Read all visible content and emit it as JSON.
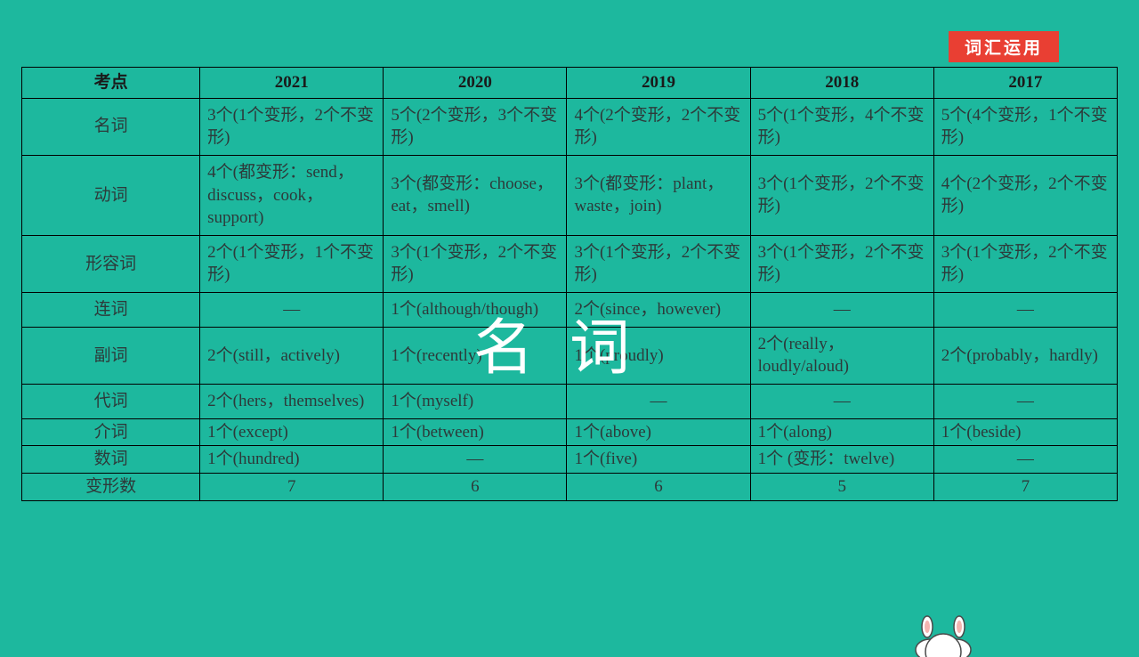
{
  "badge": "词汇运用",
  "overlay": "名词",
  "header": {
    "col0": "考点",
    "years": [
      "2021",
      "2020",
      "2019",
      "2018",
      "2017"
    ]
  },
  "rows": [
    {
      "label": "名词",
      "cells": [
        "3个(1个变形，2个不变形)",
        "5个(2个变形，3个不变形)",
        "4个(2个变形，2个不变形)",
        "5个(1个变形，4个不变形)",
        "5个(4个变形，1个不变形)"
      ],
      "align": "left"
    },
    {
      "label": "动词",
      "cells": [
        "4个(都变形：send，discuss，cook，support)",
        "3个(都变形：choose，eat，smell)",
        "3个(都变形：plant，waste，join)",
        "3个(1个变形，2个不变形)",
        "4个(2个变形，2个不变形)"
      ],
      "align": "left"
    },
    {
      "label": "形容词",
      "cells": [
        "2个(1个变形，1个不变形)",
        "3个(1个变形，2个不变形)",
        "3个(1个变形，2个不变形)",
        "3个(1个变形，2个不变形)",
        "3个(1个变形，2个不变形)"
      ],
      "align": "left"
    },
    {
      "label": "连词",
      "cells": [
        "—",
        "1个(although/though)",
        "2个(since，however)",
        "—",
        "—"
      ],
      "align": "mixed",
      "centers": [
        0,
        3,
        4
      ]
    },
    {
      "label": "副词",
      "cells": [
        "2个(still，actively)",
        "1个(recently)",
        "1个(proudly)",
        "2个(really，loudly/aloud)",
        "2个(probably，hardly)"
      ],
      "align": "left"
    },
    {
      "label": "代词",
      "cells": [
        "2个(hers，themselves)",
        "1个(myself)",
        "—",
        "—",
        "—"
      ],
      "align": "mixed",
      "centers": [
        2,
        3,
        4
      ]
    },
    {
      "label": "介词",
      "cells": [
        "1个(except)",
        "1个(between)",
        "1个(above)",
        "1个(along)",
        "1个(beside)"
      ],
      "align": "left",
      "short": true
    },
    {
      "label": "数词",
      "cells": [
        "1个(hundred)",
        "—",
        "1个(five)",
        "1个 (变形：twelve)",
        "—"
      ],
      "align": "mixed",
      "centers": [
        1,
        4
      ],
      "short": true
    },
    {
      "label": "变形数",
      "cells": [
        "7",
        "6",
        "6",
        "5",
        "7"
      ],
      "align": "center",
      "short": true
    }
  ],
  "mascot": {
    "body_fill": "#ffffff",
    "ear_fill": "#f5b5b0",
    "outline": "#4a4a4a"
  }
}
